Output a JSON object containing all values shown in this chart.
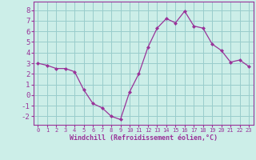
{
  "x": [
    0,
    1,
    2,
    3,
    4,
    5,
    6,
    7,
    8,
    9,
    10,
    11,
    12,
    13,
    14,
    15,
    16,
    17,
    18,
    19,
    20,
    21,
    22,
    23
  ],
  "y": [
    3.0,
    2.8,
    2.5,
    2.5,
    2.2,
    0.5,
    -0.8,
    -1.2,
    -2.0,
    -2.3,
    0.3,
    2.0,
    4.5,
    6.3,
    7.2,
    6.8,
    7.9,
    6.5,
    6.3,
    4.8,
    4.2,
    3.1,
    3.3,
    2.7
  ],
  "line_color": "#993399",
  "marker": "D",
  "marker_size": 2,
  "bg_color": "#cceee8",
  "grid_color": "#99cccc",
  "xlabel": "Windchill (Refroidissement éolien,°C)",
  "xlabel_color": "#993399",
  "tick_color": "#993399",
  "ylim": [
    -2.8,
    8.8
  ],
  "xlim": [
    -0.5,
    23.5
  ],
  "yticks": [
    -2,
    -1,
    0,
    1,
    2,
    3,
    4,
    5,
    6,
    7,
    8
  ],
  "xticks": [
    0,
    1,
    2,
    3,
    4,
    5,
    6,
    7,
    8,
    9,
    10,
    11,
    12,
    13,
    14,
    15,
    16,
    17,
    18,
    19,
    20,
    21,
    22,
    23
  ],
  "spine_color": "#993399",
  "title_color": "#993399"
}
